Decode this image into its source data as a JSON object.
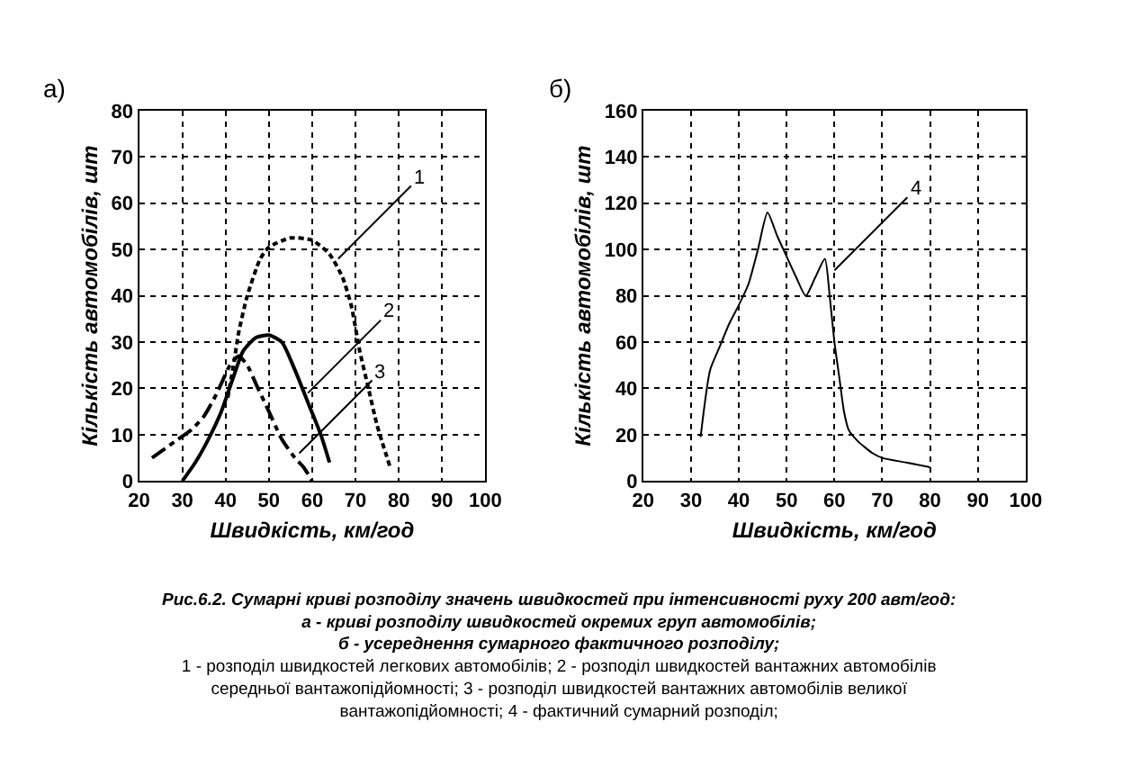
{
  "chart_data": [
    {
      "type": "line",
      "title": "а)",
      "xlabel": "Швидкість, км/год",
      "ylabel": "Кількість автомобілів, шт",
      "xlim": [
        20,
        100
      ],
      "ylim": [
        0,
        80
      ],
      "xticks": [
        20,
        30,
        40,
        50,
        60,
        70,
        80,
        90,
        100
      ],
      "yticks": [
        0,
        10,
        20,
        30,
        40,
        50,
        60,
        70,
        80
      ],
      "grid": true,
      "marker": "none",
      "series": [
        {
          "color": "#000000",
          "line_style": "dashed",
          "x": [
            40.5,
            42,
            43,
            45,
            48,
            50,
            55,
            60,
            64,
            67,
            69,
            71,
            73,
            75,
            78
          ],
          "values": [
            18,
            26,
            32,
            40,
            48,
            50.5,
            52.5,
            52,
            49,
            44,
            38,
            28,
            20,
            12,
            3
          ]
        },
        {
          "color": "#000000",
          "line_style": "solid",
          "x": [
            30,
            33,
            36,
            39,
            42,
            44,
            47,
            50,
            53,
            56,
            59,
            62,
            64
          ],
          "values": [
            0,
            4,
            9,
            15,
            23,
            28,
            31,
            31.5,
            30,
            24,
            17,
            10,
            4
          ]
        },
        {
          "color": "#000000",
          "line_style": "dashdot",
          "x": [
            23,
            26,
            29,
            32,
            35,
            38,
            41,
            43,
            45,
            47,
            50,
            53,
            56,
            58,
            60
          ],
          "values": [
            5,
            7,
            9,
            11,
            14,
            19,
            25,
            27,
            25,
            21,
            15,
            9,
            5,
            3,
            0
          ]
        }
      ],
      "annotations": [
        {
          "text": "1",
          "x": 66,
          "y": 48
        },
        {
          "text": "2",
          "x": 59,
          "y": 19
        },
        {
          "text": "3",
          "x": 57,
          "y": 6
        },
        "Рис.6.2. Сумарні криві розподілу значень швидкостей при інтенсивності руху 200 авт/год:",
        "а - криві розподілу швидкостей окремих груп автомобілів;",
        "б - усереднення сумарного фактичного розподілу;",
        "1 - розподіл швидкостей легкових автомобілів; 2 - розподіл швидкостей вантажних автомобілів середньої вантажопідйомності; 3 - розподіл швидкостей вантажних автомобілів великої вантажопідйомності; 4 - фактичний сумарний розподіл;"
      ]
    },
    {
      "type": "line",
      "title": "б)",
      "xlabel": "Швидкість, км/год",
      "ylabel": "Кількість автомобілів, шт",
      "xlim": [
        20,
        100
      ],
      "ylim": [
        0,
        160
      ],
      "xticks": [
        20,
        30,
        40,
        50,
        60,
        70,
        80,
        90,
        100
      ],
      "yticks": [
        0,
        20,
        40,
        60,
        80,
        100,
        120,
        140,
        160
      ],
      "grid": true,
      "marker": "none",
      "series": [
        {
          "color": "#000000",
          "line_style": "solid",
          "x": [
            32,
            34,
            36,
            38,
            40,
            42,
            44,
            46,
            48,
            50,
            52,
            54,
            56,
            58,
            59,
            60,
            61,
            62,
            63,
            65,
            68,
            70,
            75,
            80
          ],
          "values": [
            19,
            48,
            58,
            68,
            76,
            85,
            100,
            116,
            106,
            97,
            88,
            80,
            88,
            96,
            80,
            60,
            45,
            30,
            22,
            17,
            12,
            10,
            8,
            6
          ]
        }
      ],
      "annotations": [
        {
          "text": "4",
          "x": 60,
          "y": 91
        }
      ]
    }
  ]
}
